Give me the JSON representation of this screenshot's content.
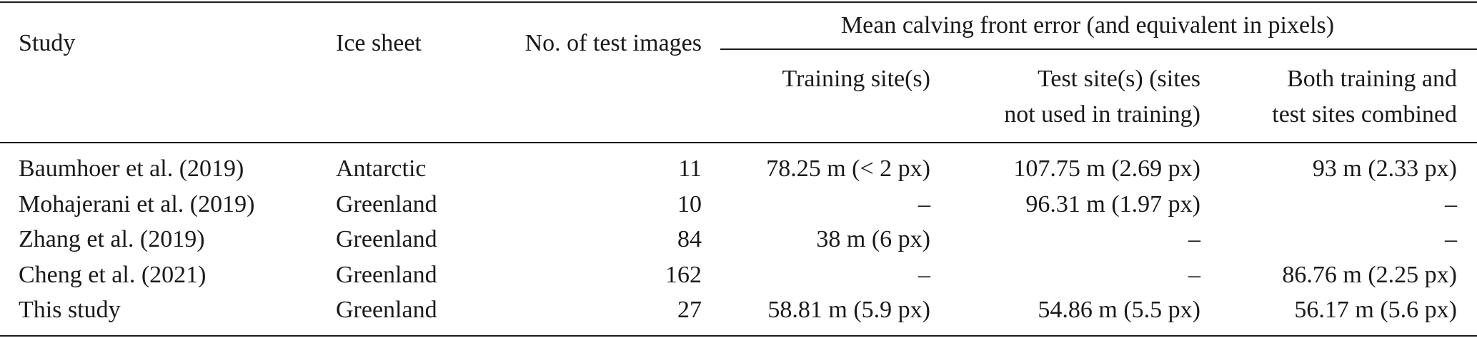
{
  "table": {
    "header": {
      "study": "Study",
      "ice_sheet": "Ice sheet",
      "num_images": "No. of test images",
      "group": "Mean calving front error (and equivalent in pixels)",
      "training": [
        "Training site(s)"
      ],
      "test": [
        "Test site(s) (sites",
        "not used in training)"
      ],
      "both": [
        "Both training and",
        "test sites combined"
      ]
    },
    "rows": [
      [
        "Baumhoer et al. (2019)",
        "Antarctic",
        "11",
        "78.25 m (< 2 px)",
        "107.75 m (2.69 px)",
        "93 m (2.33 px)"
      ],
      [
        "Mohajerani et al. (2019)",
        "Greenland",
        "10",
        "–",
        "96.31 m (1.97 px)",
        "–"
      ],
      [
        "Zhang et al. (2019)",
        "Greenland",
        "84",
        "38 m (6 px)",
        "–",
        "–"
      ],
      [
        "Cheng et al. (2021)",
        "Greenland",
        "162",
        "–",
        "–",
        "86.76 m (2.25 px)"
      ],
      [
        "This study",
        "Greenland",
        "27",
        "58.81 m (5.9 px)",
        "54.86 m (5.5 px)",
        "56.17 m (5.6 px)"
      ]
    ]
  }
}
